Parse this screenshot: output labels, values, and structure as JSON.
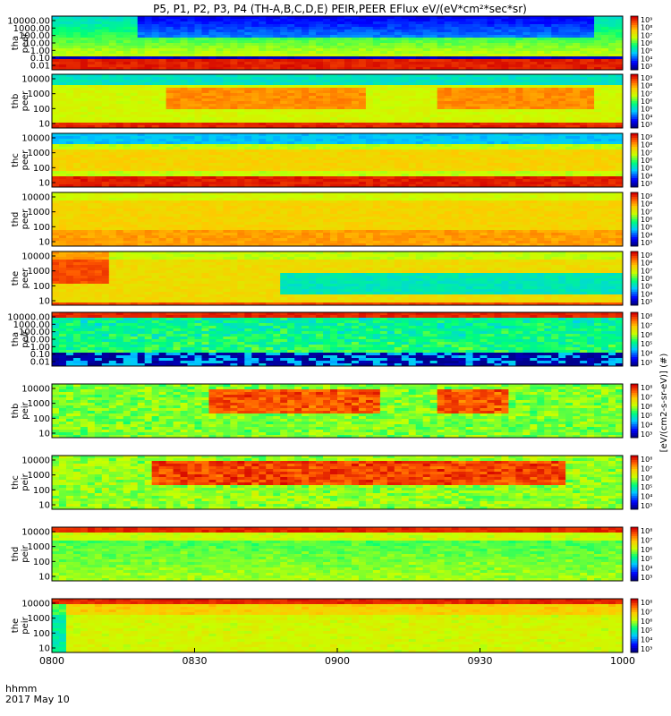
{
  "title": "P5, P1, P2, P3, P4 (TH-A,B,C,D,E) PEIR,PEER EFlux eV/(eV*cm²*sec*sr)",
  "time_axis": {
    "label_line1": "hhmm",
    "label_line2": "2017 May 10",
    "ticks": [
      "0800",
      "0830",
      "0900",
      "0930",
      "1000"
    ]
  },
  "colorbar_label": "[eV/(cm2-s-sr-eV)] (#)",
  "chart_data": [
    {
      "type": "heatmap",
      "name": "tha peer",
      "ylabel": [
        "tha",
        "peer"
      ],
      "yticks": [
        "10000.00",
        "1000.00",
        "100.00",
        "10.00",
        "1.00",
        "0.10",
        "0.01"
      ],
      "colorbar_ticks": [
        "10⁹",
        "10⁸",
        "10⁷",
        "10⁶",
        "10⁵",
        "10⁴",
        "10³"
      ]
    },
    {
      "type": "heatmap",
      "name": "thb peer",
      "ylabel": [
        "thb",
        "peer"
      ],
      "yticks": [
        "10000",
        "1000",
        "100",
        "10"
      ],
      "colorbar_ticks": [
        "10⁹",
        "10⁸",
        "10⁷",
        "10⁶",
        "10⁵",
        "10⁴",
        "10³"
      ]
    },
    {
      "type": "heatmap",
      "name": "thc peer",
      "ylabel": [
        "thc",
        "peer"
      ],
      "yticks": [
        "10000",
        "1000",
        "100",
        "10"
      ],
      "colorbar_ticks": [
        "10⁹",
        "10⁸",
        "10⁷",
        "10⁶",
        "10⁵",
        "10⁴",
        "10³"
      ]
    },
    {
      "type": "heatmap",
      "name": "thd peer",
      "ylabel": [
        "thd",
        "peer"
      ],
      "yticks": [
        "10000",
        "1000",
        "100",
        "10"
      ],
      "colorbar_ticks": [
        "10⁹",
        "10⁸",
        "10⁷",
        "10⁶",
        "10⁵",
        "10⁴",
        "10³"
      ]
    },
    {
      "type": "heatmap",
      "name": "the peer",
      "ylabel": [
        "the",
        "peer"
      ],
      "yticks": [
        "10000",
        "1000",
        "100",
        "10"
      ],
      "colorbar_ticks": [
        "10⁹",
        "10⁸",
        "10⁷",
        "10⁶",
        "10⁵",
        "10⁴",
        "10³"
      ]
    },
    {
      "type": "heatmap",
      "name": "tha peir",
      "ylabel": [
        "tha",
        "peir"
      ],
      "yticks": [
        "10000.00",
        "1000.00",
        "100.00",
        "10.00",
        "1.00",
        "0.10",
        "0.01"
      ],
      "colorbar_ticks": [
        "10⁸",
        "10⁷",
        "10⁶",
        "10⁵",
        "10⁴",
        "10³"
      ]
    },
    {
      "type": "heatmap",
      "name": "thb peir",
      "ylabel": [
        "thb",
        "peir"
      ],
      "yticks": [
        "10000",
        "1000",
        "100",
        "10"
      ],
      "colorbar_ticks": [
        "10⁸",
        "10⁷",
        "10⁶",
        "10⁵",
        "10⁴",
        "10³"
      ]
    },
    {
      "type": "heatmap",
      "name": "thc peir",
      "ylabel": [
        "thc",
        "peir"
      ],
      "yticks": [
        "10000",
        "1000",
        "100",
        "10"
      ],
      "colorbar_ticks": [
        "10⁸",
        "10⁷",
        "10⁶",
        "10⁵",
        "10⁴",
        "10³"
      ]
    },
    {
      "type": "heatmap",
      "name": "thd peir",
      "ylabel": [
        "thd",
        "peir"
      ],
      "yticks": [
        "10000",
        "1000",
        "100",
        "10"
      ],
      "colorbar_ticks": [
        "10⁸",
        "10⁷",
        "10⁶",
        "10⁵",
        "10⁴",
        "10³"
      ]
    },
    {
      "type": "heatmap",
      "name": "the peir",
      "ylabel": [
        "the",
        "peir"
      ],
      "yticks": [
        "10000",
        "1000",
        "100",
        "10"
      ],
      "colorbar_ticks": [
        "10⁸",
        "10⁷",
        "10⁶",
        "10⁵",
        "10⁴",
        "10³"
      ]
    }
  ]
}
